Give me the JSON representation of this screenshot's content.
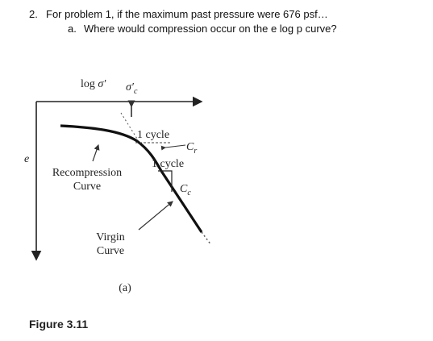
{
  "question": {
    "number": "2.",
    "text": "For problem 1, if the maximum past pressure were 676 psf…",
    "sub": {
      "label": "a.",
      "text": "Where would compression occur on the e log p curve?"
    }
  },
  "figure": {
    "x_axis_label": {
      "prefix": "log ",
      "symbol": "σ′"
    },
    "preconsolidation_label": {
      "symbol": "σ′",
      "subscript": "c"
    },
    "y_axis_label": "e",
    "cycle_label_top": "1 cycle",
    "cycle_label_bottom": "1 cycle",
    "cr_label": {
      "symbol": "C",
      "subscript": "r"
    },
    "cc_label": {
      "symbol": "C",
      "subscript": "c"
    },
    "recompression_label": [
      "Recompression",
      "Curve"
    ],
    "virgin_label": [
      "Virgin",
      "Curve"
    ],
    "panel_label": "(a)",
    "caption": "Figure 3.11"
  }
}
